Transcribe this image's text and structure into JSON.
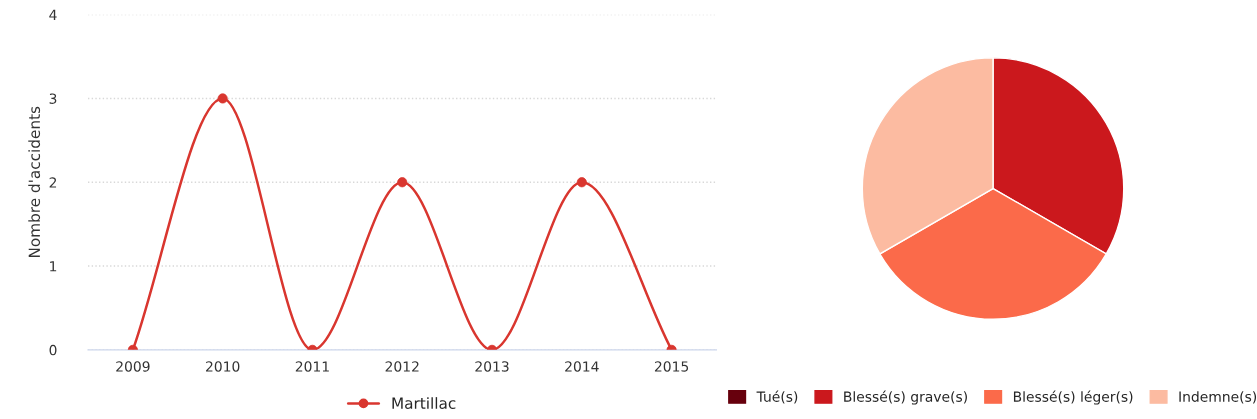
{
  "chart_data": [
    {
      "type": "line",
      "ylabel": "Nombre d'accidents",
      "categories": [
        "2009",
        "2010",
        "2011",
        "2012",
        "2013",
        "2014",
        "2015"
      ],
      "series": [
        {
          "name": "Martillac",
          "color": "#d9362f",
          "values": [
            0,
            3,
            0,
            2,
            0,
            2,
            0
          ]
        }
      ],
      "ylim": [
        0,
        4
      ],
      "yticks": [
        0,
        1,
        2,
        3,
        4
      ],
      "grid": "y",
      "legend": "bottom",
      "marker": "circle",
      "line_style": "solid"
    },
    {
      "type": "pie",
      "categories": [
        "Tué(s)",
        "Blessé(s) grave(s)",
        "Blessé(s) léger(s)",
        "Indemne(s)"
      ],
      "values": [
        0,
        33.33,
        33.33,
        33.34
      ],
      "colors": [
        "#67000d",
        "#cb181d",
        "#fb6a4a",
        "#fcbba1"
      ],
      "legend": "bottom"
    }
  ]
}
